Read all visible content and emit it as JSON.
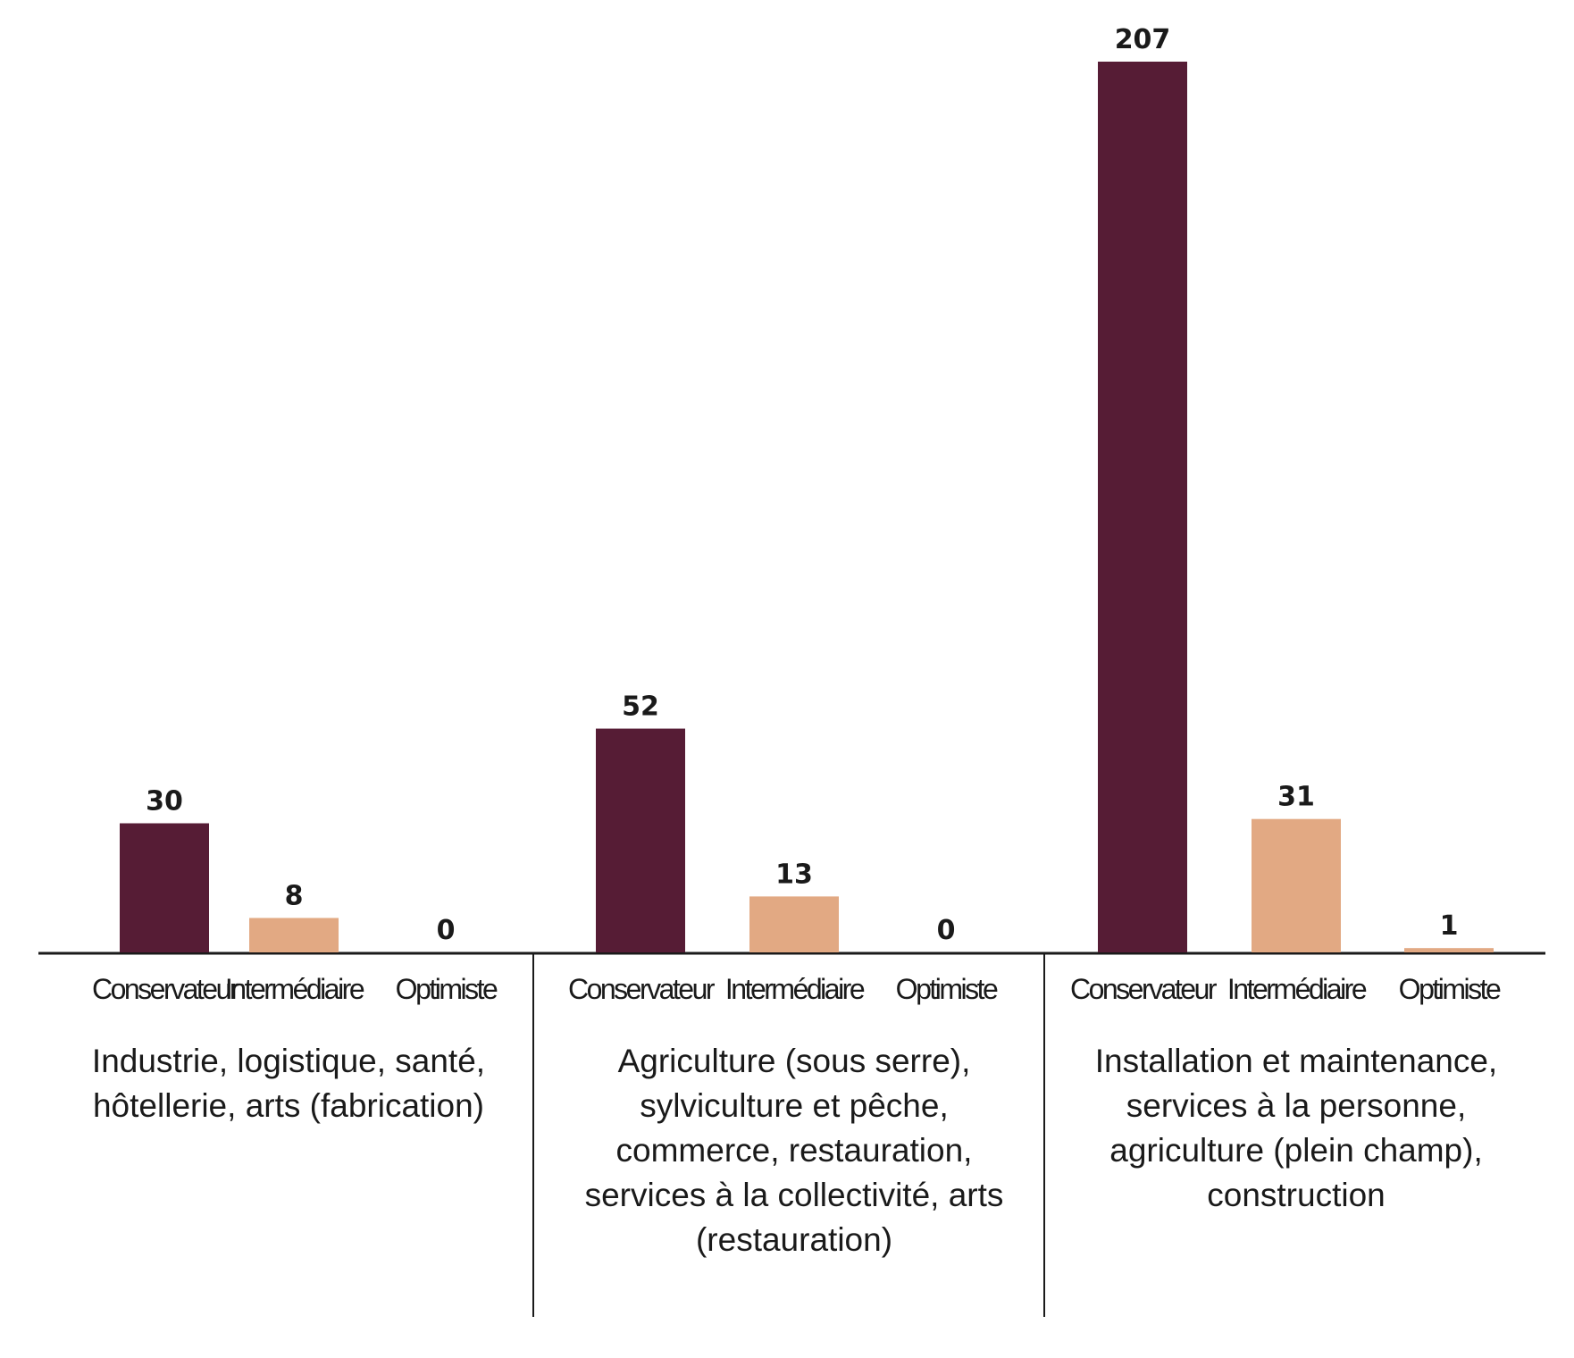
{
  "chart_data": {
    "type": "bar",
    "title": "",
    "xlabel": "",
    "ylabel": "",
    "ylim": [
      0,
      207
    ],
    "grid": false,
    "colors": {
      "Conservateur": "#561C35",
      "Intermédiaire": "#E2A983",
      "Optimiste": "#E2A983"
    },
    "groups": [
      {
        "label_lines": [
          "Industrie, logistique, santé,",
          "hôtellerie, arts (fabrication)"
        ],
        "categories": [
          "Conservateur",
          "Intermédiaire",
          "Optimiste"
        ],
        "values": [
          30,
          8,
          0
        ]
      },
      {
        "label_lines": [
          "Agriculture (sous serre),",
          "sylviculture et pêche,",
          "commerce, restauration,",
          "services à la collectivité, arts",
          "(restauration)"
        ],
        "categories": [
          "Conservateur",
          "Intermédiaire",
          "Optimiste"
        ],
        "values": [
          52,
          13,
          0
        ]
      },
      {
        "label_lines": [
          "Installation et maintenance,",
          "services à la personne,",
          "agriculture (plein champ),",
          "construction"
        ],
        "categories": [
          "Conservateur",
          "Intermédiaire",
          "Optimiste"
        ],
        "values": [
          207,
          31,
          1
        ]
      }
    ]
  }
}
